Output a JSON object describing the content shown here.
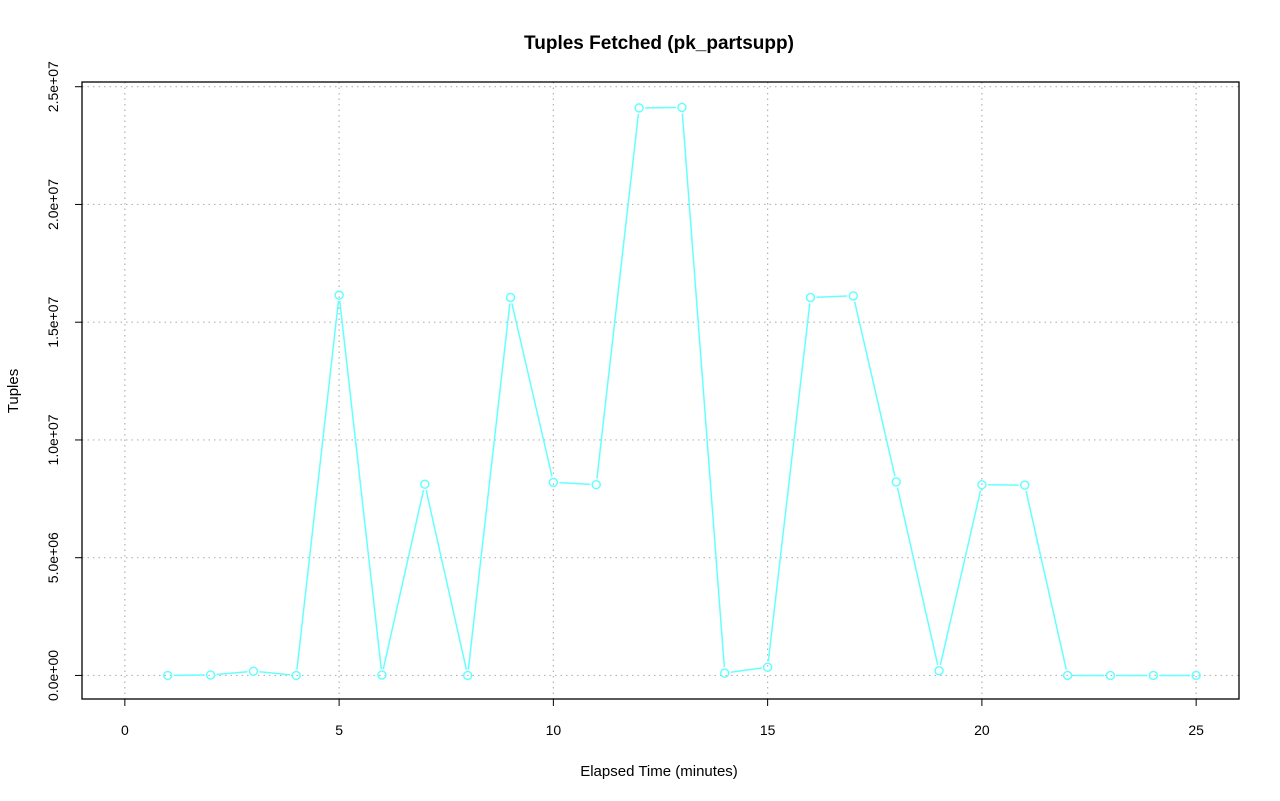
{
  "chart_data": {
    "type": "line",
    "title": "Tuples Fetched (pk_partsupp)",
    "xlabel": "Elapsed Time (minutes)",
    "ylabel": "Tuples",
    "xlim": [
      -1,
      26
    ],
    "ylim": [
      -1000000,
      25200000
    ],
    "x_ticks": [
      0,
      5,
      10,
      15,
      20,
      25
    ],
    "x_tick_labels": [
      "0",
      "5",
      "10",
      "15",
      "20",
      "25"
    ],
    "y_ticks": [
      0,
      5000000,
      10000000,
      15000000,
      20000000,
      25000000
    ],
    "y_tick_labels": [
      "0.0e+00",
      "5.0e+06",
      "1.0e+07",
      "1.5e+07",
      "2.0e+07",
      "2.5e+07"
    ],
    "grid": true,
    "series": [
      {
        "color": "#66ffff",
        "marker": "open-circle",
        "x": [
          1,
          2,
          3,
          4,
          5,
          6,
          7,
          8,
          9,
          10,
          11,
          12,
          13,
          14,
          15,
          16,
          17,
          18,
          19,
          20,
          21,
          22,
          23,
          24,
          25
        ],
        "values": [
          0,
          20000,
          180000,
          0,
          16150000,
          20000,
          8120000,
          0,
          16050000,
          8200000,
          8100000,
          24100000,
          24120000,
          100000,
          350000,
          16050000,
          16120000,
          8220000,
          200000,
          8100000,
          8080000,
          0,
          0,
          0,
          0
        ]
      }
    ]
  }
}
